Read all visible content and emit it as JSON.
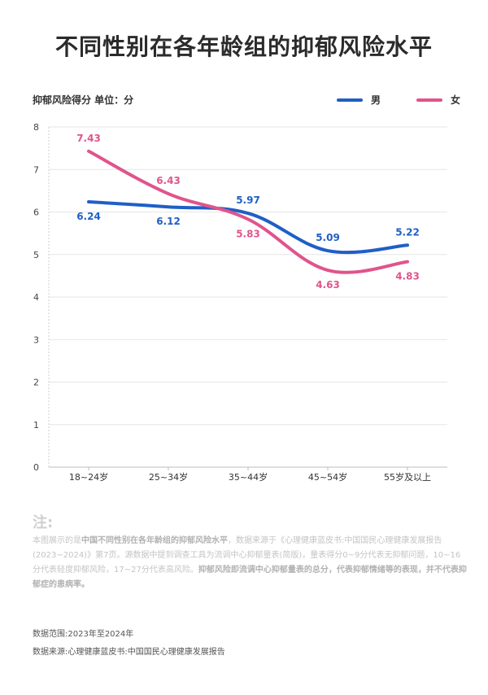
{
  "title": "不同性别在各年龄组的抑郁风险水平",
  "y_axis_caption": "抑郁风险得分 单位：分",
  "legend": [
    {
      "name": "男",
      "color": "#1f5fc6"
    },
    {
      "name": "女",
      "color": "#e0548c"
    }
  ],
  "chart_data": {
    "type": "line",
    "title": "不同性别在各年龄组的抑郁风险水平",
    "ylabel": "抑郁风险得分 单位：分",
    "xlabel": "",
    "categories": [
      "18~24岁",
      "25~34岁",
      "35~44岁",
      "45~54岁",
      "55岁及以上"
    ],
    "ylim": [
      0,
      8
    ],
    "yticks": [
      "0",
      "1",
      "2",
      "3",
      "4",
      "5",
      "6",
      "7",
      "8"
    ],
    "grid": "horizontal",
    "legend_position": "top-right",
    "series": [
      {
        "name": "男",
        "color": "#1f5fc6",
        "values": [
          6.24,
          6.12,
          5.97,
          5.09,
          5.22
        ],
        "labels": [
          "6.24",
          "6.12",
          "5.97",
          "5.09",
          "5.22"
        ]
      },
      {
        "name": "女",
        "color": "#e0548c",
        "values": [
          7.43,
          6.43,
          5.83,
          4.63,
          4.83
        ],
        "labels": [
          "7.43",
          "6.43",
          "5.83",
          "4.63",
          "4.83"
        ]
      }
    ]
  },
  "note": {
    "heading": "注:",
    "p1": "本图展示的是",
    "b1": "中国不同性别在各年龄组的抑郁风险水平",
    "p2": "，数据来源于《心理健康蓝皮书:中国国民心理健康发展报告(2023~2024)》第7页。源数据中提到调查工具为流调中心抑郁量表(简版)，量表得分0~9分代表无抑郁问题，10~16分代表轻度抑郁风险，17~27分代表高风险。",
    "b2": "抑郁风险即流调中心抑郁量表的总分，代表抑郁情绪等的表现，并不代表抑郁症的患病率。"
  },
  "data_range": "数据范围:2023年至2024年",
  "data_source": "数据来源:心理健康蓝皮书:中国国民心理健康发展报告"
}
